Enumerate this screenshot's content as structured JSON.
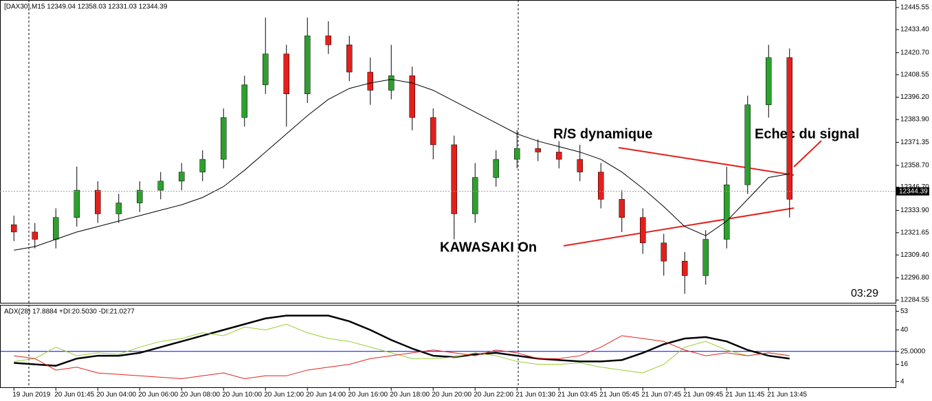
{
  "chart_data": [
    {
      "type": "candlestick",
      "title": "[DAX30],M15  12349.04 12358.03 12331.03 12344.39",
      "timer": "03:29",
      "annotations": [
        "R/S dynamique",
        "Echec du signal",
        "KAWASAKI On"
      ],
      "categories": [
        "19 Jun 2019",
        null,
        "20 Jun 01:45",
        null,
        "20 Jun 04:00",
        null,
        "20 Jun 06:00",
        null,
        "20 Jun 08:00",
        null,
        "20 Jun 10:00",
        null,
        "20 Jun 12:00",
        null,
        "20 Jun 14:00",
        null,
        "20 Jun 16:00",
        null,
        "20 Jun 18:00",
        null,
        "20 Jun 20:00",
        null,
        "20 Jun 22:00",
        null,
        "21 Jun 01:30",
        null,
        "21 Jun 03:45",
        null,
        "21 Jun 05:45",
        null,
        "21 Jun 07:45",
        null,
        "21 Jun 09:45",
        null,
        "21 Jun 11:45",
        null,
        "21 Jun 13:45",
        null
      ],
      "open": [
        12326,
        12322,
        12318,
        12330,
        12345,
        12332,
        12338,
        12345,
        12350,
        12355,
        12362,
        12385,
        12403,
        12420,
        12398,
        12430,
        12425,
        12410,
        12400,
        12408,
        12385,
        12370,
        12332,
        12352,
        12362,
        12368,
        12366,
        12362,
        12355,
        12340,
        12330,
        12316,
        12306,
        12298,
        12318,
        12348,
        12392,
        12418
      ],
      "high": [
        12331,
        12327,
        12335,
        12358,
        12350,
        12343,
        12350,
        12355,
        12360,
        12367,
        12390,
        12408,
        12440,
        12425,
        12440,
        12438,
        12430,
        12418,
        12425,
        12413,
        12390,
        12375,
        12360,
        12367,
        12378,
        12373,
        12372,
        12370,
        12360,
        12345,
        12335,
        12321,
        12311,
        12323,
        12358,
        12397,
        12425,
        12423
      ],
      "low": [
        12317,
        12313,
        12313,
        12325,
        12327,
        12327,
        12333,
        12340,
        12345,
        12350,
        12357,
        12380,
        12398,
        12380,
        12393,
        12420,
        12405,
        12392,
        12395,
        12378,
        12362,
        12318,
        12327,
        12347,
        12357,
        12361,
        12357,
        12350,
        12335,
        12322,
        12310,
        12298,
        12288,
        12293,
        12313,
        12343,
        12385,
        12330
      ],
      "close": [
        12322,
        12318,
        12330,
        12345,
        12332,
        12338,
        12345,
        12350,
        12355,
        12362,
        12385,
        12403,
        12420,
        12398,
        12430,
        12425,
        12410,
        12400,
        12408,
        12385,
        12370,
        12332,
        12352,
        12362,
        12368,
        12366,
        12362,
        12355,
        12340,
        12330,
        12316,
        12306,
        12298,
        12318,
        12348,
        12392,
        12418,
        12340
      ],
      "ma": [
        12312,
        12314,
        12318,
        12322,
        12325,
        12328,
        12331,
        12334,
        12337,
        12341,
        12347,
        12356,
        12366,
        12376,
        12386,
        12395,
        12401,
        12404,
        12406,
        12404,
        12400,
        12394,
        12388,
        12382,
        12376,
        12372,
        12369,
        12366,
        12362,
        12355,
        12346,
        12336,
        12325,
        12320,
        12328,
        12340,
        12352,
        12354
      ],
      "up_color": "#2ea02e",
      "down_color": "#e3201b",
      "ma_color": "#000000",
      "last_price": 12344.39,
      "ylim": [
        12283.05,
        12449.3
      ],
      "yticks": [
        {
          "value": 12445.55,
          "label": "12445.55"
        },
        {
          "value": 12433.4,
          "label": "12433.40"
        },
        {
          "value": 12420.7,
          "label": "12420.70"
        },
        {
          "value": 12408.55,
          "label": "12408.55"
        },
        {
          "value": 12396.2,
          "label": "12396.20"
        },
        {
          "value": 12383.9,
          "label": "12383.90"
        },
        {
          "value": 12371.35,
          "label": "12371.35"
        },
        {
          "value": 12358.7,
          "label": "12358.70"
        },
        {
          "value": 12346.7,
          "label": "12346.70"
        },
        {
          "value": 12333.9,
          "label": "12333.90"
        },
        {
          "value": 12321.65,
          "label": "12321.65"
        },
        {
          "value": 12309.4,
          "label": "12309.40"
        },
        {
          "value": 12296.8,
          "label": "12296.80"
        },
        {
          "value": 12284.55,
          "label": "12284.55"
        }
      ]
    },
    {
      "type": "line",
      "title": "ADX(28) 17.8884 +DI:20.5030 -DI:21.0277",
      "series": [
        {
          "color": "#000000",
          "values": [
            17,
            16,
            15,
            20,
            22,
            22,
            24,
            28,
            32,
            36,
            40,
            44,
            48,
            50,
            50,
            50,
            46,
            40,
            33,
            27,
            22,
            21,
            23,
            24,
            22,
            20,
            19,
            18,
            18,
            19,
            24,
            30,
            34,
            35,
            32,
            26,
            22,
            20
          ]
        },
        {
          "color": "#9acd32",
          "values": [
            18,
            20,
            28,
            22,
            24,
            23,
            28,
            32,
            34,
            38,
            36,
            42,
            40,
            44,
            38,
            34,
            32,
            28,
            24,
            20,
            20,
            21,
            24,
            22,
            18,
            16,
            16,
            17,
            14,
            12,
            10,
            16,
            28,
            32,
            26,
            22,
            24,
            22
          ]
        },
        {
          "color": "#e3201b",
          "values": [
            22,
            20,
            12,
            14,
            10,
            9,
            8,
            7,
            6,
            8,
            10,
            6,
            8,
            8,
            12,
            14,
            16,
            20,
            22,
            24,
            26,
            24,
            22,
            26,
            24,
            20,
            20,
            22,
            28,
            36,
            34,
            32,
            26,
            22,
            24,
            22,
            24,
            22
          ]
        }
      ],
      "level_color": "#0000ff",
      "ylim": [
        0,
        57
      ],
      "yticks": [
        53,
        40,
        {
          "value": 25,
          "label": "25.0000"
        },
        16,
        4
      ]
    }
  ]
}
